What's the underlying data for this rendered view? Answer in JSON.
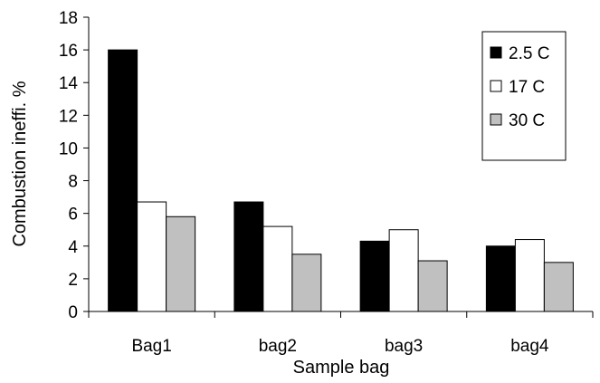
{
  "chart_data": {
    "type": "bar",
    "title": "",
    "xlabel": "Sample bag",
    "ylabel": "Combustion ineffi.  %",
    "categories": [
      "Bag1",
      "bag2",
      "bag3",
      "bag4"
    ],
    "ylim": [
      0,
      18
    ],
    "yticks": [
      0,
      2,
      4,
      6,
      8,
      10,
      12,
      14,
      16,
      18
    ],
    "grid": false,
    "legend_position": "top-right",
    "series": [
      {
        "name": "2.5 C",
        "values": [
          16.0,
          6.7,
          4.3,
          4.0
        ],
        "color": "#000000"
      },
      {
        "name": "17 C",
        "values": [
          6.7,
          5.2,
          5.0,
          4.4
        ],
        "color": "#ffffff"
      },
      {
        "name": "30 C",
        "values": [
          5.8,
          3.5,
          3.1,
          3.0
        ],
        "color": "#c0c0c0"
      }
    ]
  }
}
